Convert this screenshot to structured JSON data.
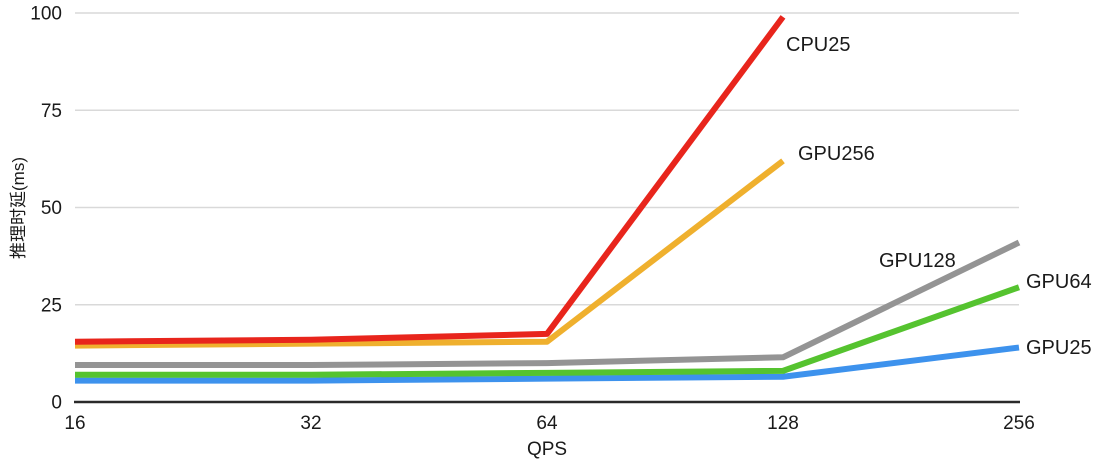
{
  "chart_data": {
    "type": "line",
    "title": "",
    "xlabel": "QPS",
    "ylabel": "推理时延(ms)",
    "categories": [
      "16",
      "32",
      "64",
      "128",
      "256"
    ],
    "yticks": [
      "0",
      "25",
      "50",
      "75",
      "100"
    ],
    "ylim": [
      0,
      100
    ],
    "grid": "horizontal-only",
    "legend_position": "inline-labels-at-line-ends",
    "series": [
      {
        "name": "CPU25",
        "color": "#e8251c",
        "x": [
          "16",
          "32",
          "64",
          "128"
        ],
        "values": [
          15.5,
          16,
          17.5,
          99
        ]
      },
      {
        "name": "GPU256",
        "color": "#efb02e",
        "x": [
          "16",
          "32",
          "64",
          "128"
        ],
        "values": [
          14.5,
          15,
          15.5,
          62
        ]
      },
      {
        "name": "GPU128",
        "color": "#949494",
        "x": [
          "16",
          "32",
          "64",
          "128",
          "256"
        ],
        "values": [
          9.5,
          9.5,
          10,
          11.5,
          41
        ]
      },
      {
        "name": "GPU64",
        "color": "#55c32f",
        "x": [
          "16",
          "32",
          "64",
          "128",
          "256"
        ],
        "values": [
          7,
          7,
          7.5,
          8,
          29.5
        ]
      },
      {
        "name": "GPU25",
        "color": "#3d92ed",
        "x": [
          "16",
          "32",
          "64",
          "128",
          "256"
        ],
        "values": [
          5.5,
          5.5,
          6,
          6.5,
          14
        ]
      }
    ]
  },
  "colors": {
    "background": "#ffffff",
    "axis_line": "#2a2a2a",
    "gridline": "#d9d9d9",
    "text": "#1a1a1a"
  }
}
